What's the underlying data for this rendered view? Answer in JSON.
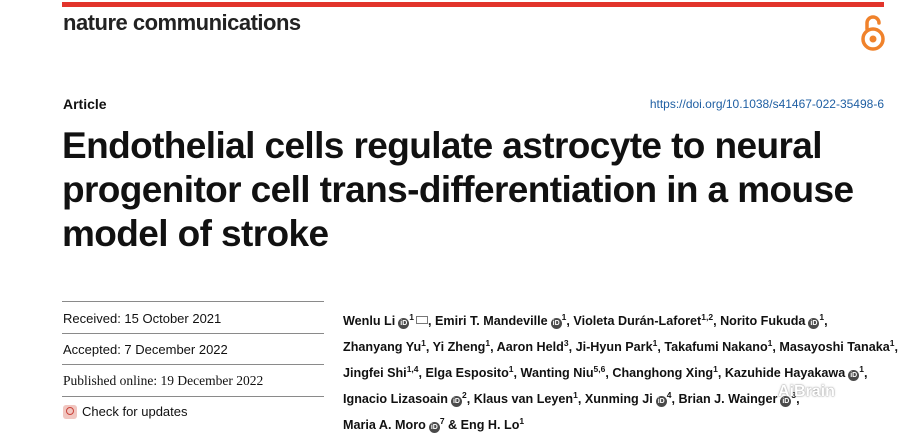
{
  "journal": {
    "name": "nature communications"
  },
  "header": {
    "article_type": "Article",
    "doi": "https://doi.org/10.1038/s41467-022-35498-6"
  },
  "title": "Endothelial cells regulate astrocyte to neural progenitor cell trans-differentiation in a mouse model of stroke",
  "dates": {
    "received": "Received: 15 October 2021",
    "accepted": "Accepted: 7 December 2022",
    "published": "Published online: 19 December 2022"
  },
  "check_updates": {
    "label": "Check for updates"
  },
  "authors": [
    {
      "name": "Wenlu Li",
      "sup": "1",
      "orcid": true,
      "mail": true
    },
    {
      "name": "Emiri T. Mandeville",
      "sup": "1",
      "orcid": true
    },
    {
      "name": "Violeta Durán-Laforet",
      "sup": "1,2"
    },
    {
      "name": "Norito Fukuda",
      "sup": "1",
      "orcid": true
    },
    {
      "name": "Zhanyang Yu",
      "sup": "1"
    },
    {
      "name": "Yi Zheng",
      "sup": "1"
    },
    {
      "name": "Aaron Held",
      "sup": "3"
    },
    {
      "name": "Ji-Hyun Park",
      "sup": "1"
    },
    {
      "name": "Takafumi Nakano",
      "sup": "1"
    },
    {
      "name": "Masayoshi Tanaka",
      "sup": "1"
    },
    {
      "name": "Jingfei Shi",
      "sup": "1,4"
    },
    {
      "name": "Elga Esposito",
      "sup": "1"
    },
    {
      "name": "Wanting Niu",
      "sup": "5,6"
    },
    {
      "name": "Changhong Xing",
      "sup": "1"
    },
    {
      "name": "Kazuhide Hayakawa",
      "sup": "1",
      "orcid": true
    },
    {
      "name": "Ignacio Lizasoain",
      "sup": "2",
      "orcid": true
    },
    {
      "name": "Klaus van Leyen",
      "sup": "1"
    },
    {
      "name": "Xunming Ji",
      "sup": "4",
      "orcid": true
    },
    {
      "name": "Brian J. Wainger",
      "sup": "3",
      "orcid": true
    },
    {
      "name": "Maria A. Moro",
      "sup": "7",
      "orcid": true
    },
    {
      "name": "Eng H. Lo",
      "sup": "1"
    }
  ],
  "watermark": "AiBrain",
  "icons": {
    "open_access": "open-access-lock-icon",
    "orcid": "orcid-icon",
    "mail": "mail-icon",
    "updates": "check-for-updates-icon"
  },
  "colors": {
    "topbar": "#e2342b",
    "open_access": "#f0822b",
    "doi_link": "#1f5fa3"
  }
}
